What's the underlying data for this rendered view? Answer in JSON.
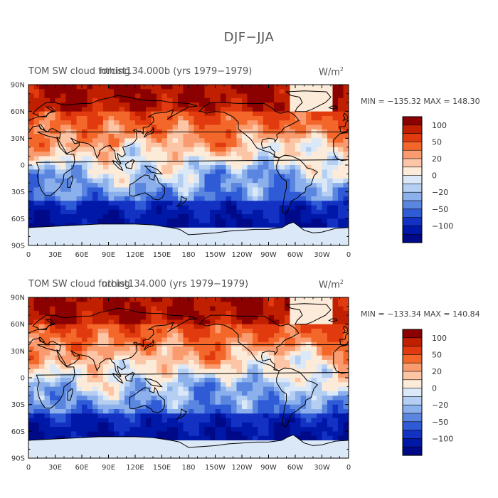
{
  "page_title": "DJF−JJA",
  "panels": [
    {
      "title": "TOM SW cloud forcing",
      "overlap_title": "nthist134.000b (yrs 1979−1979)",
      "units": "W/m",
      "units_sup": "2",
      "stats": "MIN = −135.32  MAX = 148.30"
    },
    {
      "title": "TOM SW cloud forcing",
      "overlap_title": "nthist134.000 (yrs 1979−1979)",
      "units": "W/m",
      "units_sup": "2",
      "stats": "MIN = −133.34  MAX = 140.84"
    }
  ],
  "axes": {
    "lat_labels": [
      "90N",
      "60N",
      "30N",
      "0",
      "30S",
      "60S",
      "90S"
    ],
    "lon_labels": [
      "0",
      "30E",
      "60E",
      "90E",
      "120E",
      "150E",
      "180",
      "150W",
      "120W",
      "90W",
      "60W",
      "30W",
      "0"
    ]
  },
  "colorbar": {
    "colors": [
      "#8b0000",
      "#c01f00",
      "#e03a0e",
      "#f4672a",
      "#f99b6e",
      "#fcc5a6",
      "#fdebd9",
      "#dbe8f8",
      "#b4cff2",
      "#8cb0eb",
      "#5a86e0",
      "#2f5bd6",
      "#1332c4",
      "#0018a8",
      "#000a88"
    ],
    "labels": [
      "100",
      "50",
      "20",
      "0",
      "−20",
      "−50",
      "−100"
    ]
  }
}
